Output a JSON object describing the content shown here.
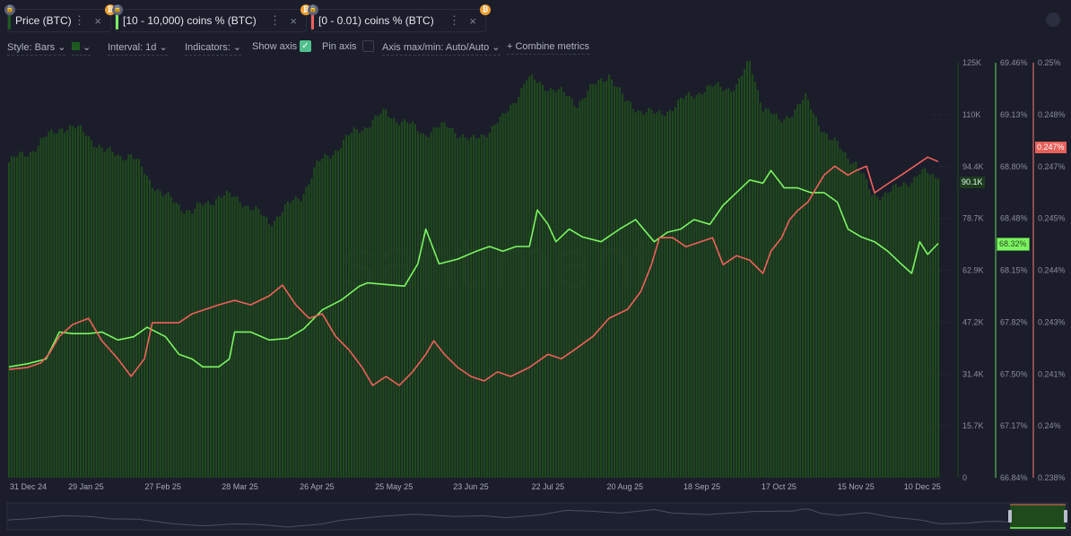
{
  "metrics": [
    {
      "label": "Price (BTC)",
      "color": "#1e5a1e"
    },
    {
      "label": "[10 - 10,000) coins % (BTC)",
      "color": "#7cf562"
    },
    {
      "label": "[0 - 0.01) coins % (BTC)",
      "color": "#f0605a"
    }
  ],
  "toolbar": {
    "style": "Style: Bars",
    "interval": "Interval: 1d",
    "indicators": "Indicators:",
    "show_axis": "Show axis",
    "show_axis_checked": true,
    "pin_axis": "Pin axis",
    "pin_axis_checked": false,
    "axis_maxmin": "Axis max/min: Auto/Auto",
    "combine": "Combine metrics"
  },
  "icons": {
    "lock": "lock-icon",
    "btc": "bitcoin-icon",
    "menu": "kebab-menu-icon",
    "close": "close-icon"
  },
  "watermark": "santiment",
  "chart_data": [
    {
      "type": "bar",
      "name": "Price (BTC)",
      "unit": "K USD",
      "color": "#1f4d1f",
      "ylim": [
        0,
        125
      ],
      "yticks": [
        "125K",
        "110K",
        "94.4K",
        "78.7K",
        "62.9K",
        "47.2K",
        "31.4K",
        "15.7K",
        "0"
      ],
      "last_label": "90.1K",
      "points": [
        [
          0,
          95
        ],
        [
          7,
          98
        ],
        [
          20,
          106
        ],
        [
          29,
          104
        ],
        [
          36,
          98
        ],
        [
          46,
          97
        ],
        [
          58,
          85
        ],
        [
          69,
          80
        ],
        [
          79,
          85
        ],
        [
          87,
          84
        ],
        [
          98,
          77
        ],
        [
          110,
          85
        ],
        [
          116,
          94
        ],
        [
          130,
          104
        ],
        [
          142,
          110
        ],
        [
          156,
          104
        ],
        [
          166,
          106
        ],
        [
          174,
          101
        ],
        [
          186,
          108
        ],
        [
          195,
          120
        ],
        [
          203,
          118
        ],
        [
          214,
          113
        ],
        [
          226,
          122
        ],
        [
          232,
          113
        ],
        [
          244,
          109
        ],
        [
          261,
          117
        ],
        [
          274,
          118
        ],
        [
          279,
          125
        ],
        [
          284,
          112
        ],
        [
          290,
          107
        ],
        [
          300,
          114
        ],
        [
          309,
          102
        ],
        [
          319,
          95
        ],
        [
          325,
          85
        ],
        [
          335,
          87
        ],
        [
          343,
          92
        ],
        [
          350,
          90.1
        ]
      ]
    },
    {
      "type": "line",
      "name": "[10 - 10,000) coins % (BTC)",
      "unit": "%",
      "color": "#7cf562",
      "ylim": [
        66.84,
        69.46
      ],
      "yticks": [
        "69.46%",
        "69.13%",
        "68.80%",
        "68.48%",
        "68.15%",
        "67.82%",
        "67.50%",
        "67.17%",
        "66.84%"
      ],
      "last_label": "68.32%",
      "points": [
        [
          0,
          67.54
        ],
        [
          7,
          67.56
        ],
        [
          14,
          67.59
        ],
        [
          19,
          67.76
        ],
        [
          24,
          67.75
        ],
        [
          30,
          67.75
        ],
        [
          35,
          67.76
        ],
        [
          41,
          67.71
        ],
        [
          47,
          67.73
        ],
        [
          52,
          67.79
        ],
        [
          59,
          67.73
        ],
        [
          64,
          67.62
        ],
        [
          69,
          67.59
        ],
        [
          73,
          67.54
        ],
        [
          79,
          67.54
        ],
        [
          83,
          67.59
        ],
        [
          85,
          67.76
        ],
        [
          91,
          67.76
        ],
        [
          98,
          67.71
        ],
        [
          105,
          67.72
        ],
        [
          111,
          67.78
        ],
        [
          118,
          67.9
        ],
        [
          125,
          67.96
        ],
        [
          132,
          68.05
        ],
        [
          135,
          68.07
        ],
        [
          142,
          68.06
        ],
        [
          149,
          68.05
        ],
        [
          154,
          68.19
        ],
        [
          157,
          68.41
        ],
        [
          162,
          68.19
        ],
        [
          169,
          68.22
        ],
        [
          176,
          68.27
        ],
        [
          181,
          68.3
        ],
        [
          186,
          68.27
        ],
        [
          191,
          68.3
        ],
        [
          196,
          68.3
        ],
        [
          199,
          68.53
        ],
        [
          203,
          68.44
        ],
        [
          206,
          68.33
        ],
        [
          211,
          68.41
        ],
        [
          216,
          68.36
        ],
        [
          223,
          68.33
        ],
        [
          230,
          68.41
        ],
        [
          236,
          68.47
        ],
        [
          243,
          68.33
        ],
        [
          248,
          68.39
        ],
        [
          253,
          68.41
        ],
        [
          258,
          68.47
        ],
        [
          264,
          68.44
        ],
        [
          269,
          68.56
        ],
        [
          274,
          68.64
        ],
        [
          279,
          68.72
        ],
        [
          284,
          68.7
        ],
        [
          287,
          68.78
        ],
        [
          292,
          68.67
        ],
        [
          297,
          68.67
        ],
        [
          302,
          68.64
        ],
        [
          307,
          68.64
        ],
        [
          312,
          68.58
        ],
        [
          316,
          68.41
        ],
        [
          321,
          68.36
        ],
        [
          326,
          68.33
        ],
        [
          331,
          68.27
        ],
        [
          336,
          68.19
        ],
        [
          340,
          68.13
        ],
        [
          343,
          68.33
        ],
        [
          346,
          68.25
        ],
        [
          350,
          68.32
        ]
      ]
    },
    {
      "type": "line",
      "name": "[0 - 0.01) coins % (BTC)",
      "unit": "%",
      "color": "#f0605a",
      "ylim": [
        0.238,
        0.25
      ],
      "yticks": [
        "0.25%",
        "0.248%",
        "0.247%",
        "0.245%",
        "0.244%",
        "0.243%",
        "0.241%",
        "0.24%",
        "0.238%"
      ],
      "last_label": "0.247%",
      "points": [
        [
          0,
          0.24113
        ],
        [
          7,
          0.24119
        ],
        [
          12,
          0.24132
        ],
        [
          15,
          0.24157
        ],
        [
          19,
          0.24209
        ],
        [
          24,
          0.24243
        ],
        [
          30,
          0.24261
        ],
        [
          35,
          0.24196
        ],
        [
          41,
          0.24144
        ],
        [
          46,
          0.24093
        ],
        [
          51,
          0.24144
        ],
        [
          54,
          0.24248
        ],
        [
          59,
          0.24248
        ],
        [
          64,
          0.24248
        ],
        [
          69,
          0.24274
        ],
        [
          74,
          0.24287
        ],
        [
          79,
          0.243
        ],
        [
          85,
          0.24313
        ],
        [
          91,
          0.243
        ],
        [
          98,
          0.24326
        ],
        [
          103,
          0.24357
        ],
        [
          108,
          0.243
        ],
        [
          113,
          0.24261
        ],
        [
          118,
          0.24274
        ],
        [
          123,
          0.24209
        ],
        [
          128,
          0.2417
        ],
        [
          133,
          0.24119
        ],
        [
          137,
          0.24067
        ],
        [
          142,
          0.24093
        ],
        [
          147,
          0.24067
        ],
        [
          152,
          0.24106
        ],
        [
          157,
          0.24157
        ],
        [
          160,
          0.24196
        ],
        [
          164,
          0.24157
        ],
        [
          169,
          0.24119
        ],
        [
          174,
          0.24093
        ],
        [
          179,
          0.2408
        ],
        [
          184,
          0.24106
        ],
        [
          189,
          0.24093
        ],
        [
          196,
          0.24119
        ],
        [
          203,
          0.24157
        ],
        [
          208,
          0.24144
        ],
        [
          213,
          0.2417
        ],
        [
          220,
          0.24209
        ],
        [
          226,
          0.24261
        ],
        [
          233,
          0.24287
        ],
        [
          238,
          0.24339
        ],
        [
          242,
          0.24416
        ],
        [
          245,
          0.24494
        ],
        [
          250,
          0.24494
        ],
        [
          255,
          0.24468
        ],
        [
          260,
          0.24481
        ],
        [
          265,
          0.24494
        ],
        [
          269,
          0.24416
        ],
        [
          274,
          0.24442
        ],
        [
          279,
          0.24429
        ],
        [
          284,
          0.24391
        ],
        [
          287,
          0.24455
        ],
        [
          291,
          0.24494
        ],
        [
          294,
          0.24546
        ],
        [
          297,
          0.24572
        ],
        [
          301,
          0.24598
        ],
        [
          304,
          0.24637
        ],
        [
          307,
          0.24675
        ],
        [
          311,
          0.24701
        ],
        [
          316,
          0.24675
        ],
        [
          319,
          0.24688
        ],
        [
          323,
          0.24701
        ],
        [
          326,
          0.24624
        ],
        [
          331,
          0.2465
        ],
        [
          336,
          0.24675
        ],
        [
          341,
          0.24701
        ],
        [
          346,
          0.24727
        ],
        [
          350,
          0.24714
        ]
      ]
    }
  ],
  "xticks": [
    {
      "day": 0,
      "label": "31 Dec 24"
    },
    {
      "day": 29,
      "label": "29 Jan 25"
    },
    {
      "day": 58,
      "label": "27 Feb 25"
    },
    {
      "day": 87,
      "label": "28 Mar 25"
    },
    {
      "day": 116,
      "label": "26 Apr 25"
    },
    {
      "day": 145,
      "label": "25 May 25"
    },
    {
      "day": 174,
      "label": "23 Jun 25"
    },
    {
      "day": 203,
      "label": "22 Jul 25"
    },
    {
      "day": 232,
      "label": "20 Aug 25"
    },
    {
      "day": 261,
      "label": "18 Sep 25"
    },
    {
      "day": 290,
      "label": "17 Oct 25"
    },
    {
      "day": 319,
      "label": "15 Nov 25"
    },
    {
      "day": 344,
      "label": "10 Dec 25"
    }
  ]
}
